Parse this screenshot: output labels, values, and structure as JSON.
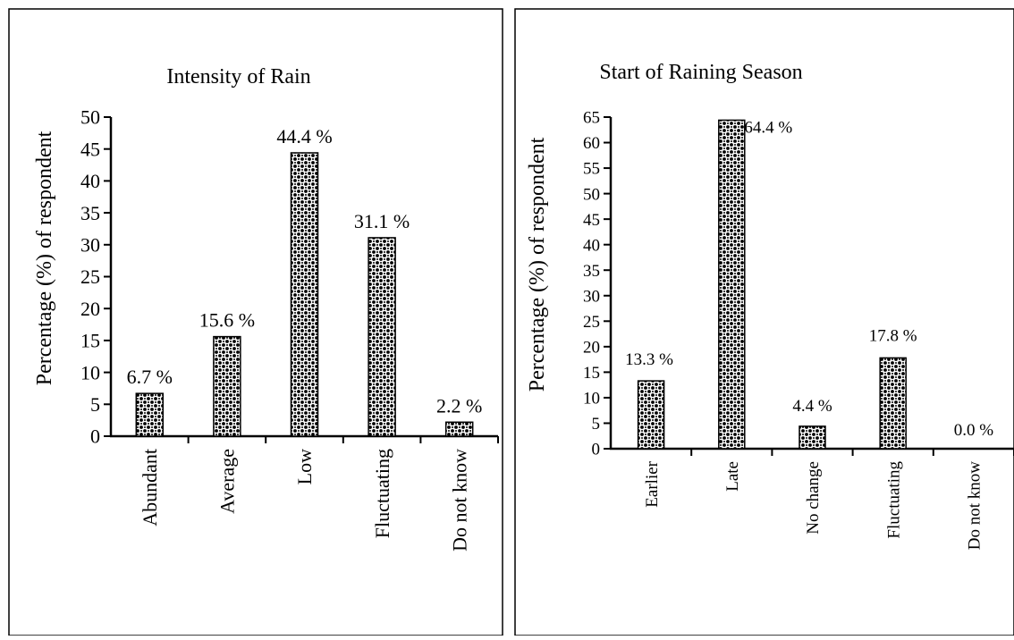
{
  "chart_data": [
    {
      "type": "bar",
      "title": "Intensity of Rain",
      "ylabel": "Percentage (%) of respondent",
      "xlabel": "",
      "categories": [
        "Abundant",
        "Average",
        "Low",
        "Fluctuating",
        "Do not know"
      ],
      "values": [
        6.7,
        15.6,
        44.4,
        31.1,
        2.2
      ],
      "data_labels": [
        "6.7 %",
        "15.6 %",
        "44.4 %",
        "31.1 %",
        "2.2 %"
      ],
      "ylim": [
        0,
        50
      ],
      "yticks": [
        0,
        5,
        10,
        15,
        20,
        25,
        30,
        35,
        40,
        45,
        50
      ],
      "grid": false,
      "legend": "none",
      "bar_fill": "checkered black/white pattern"
    },
    {
      "type": "bar",
      "title": "Start of Raining Season",
      "ylabel": "Percentage (%) of respondent",
      "xlabel": "",
      "categories": [
        "Earlier",
        "Late",
        "No change",
        "Fluctuating",
        "Do not know"
      ],
      "values": [
        13.3,
        64.4,
        4.4,
        17.8,
        0.0
      ],
      "data_labels": [
        "13.3 %",
        "64.4 %",
        "4.4 %",
        "17.8 %",
        "0.0 %"
      ],
      "ylim": [
        0,
        65
      ],
      "yticks": [
        0,
        5,
        10,
        15,
        20,
        25,
        30,
        35,
        40,
        45,
        50,
        55,
        60,
        65
      ],
      "grid": false,
      "legend": "none",
      "bar_fill": "checkered black/white pattern"
    }
  ]
}
